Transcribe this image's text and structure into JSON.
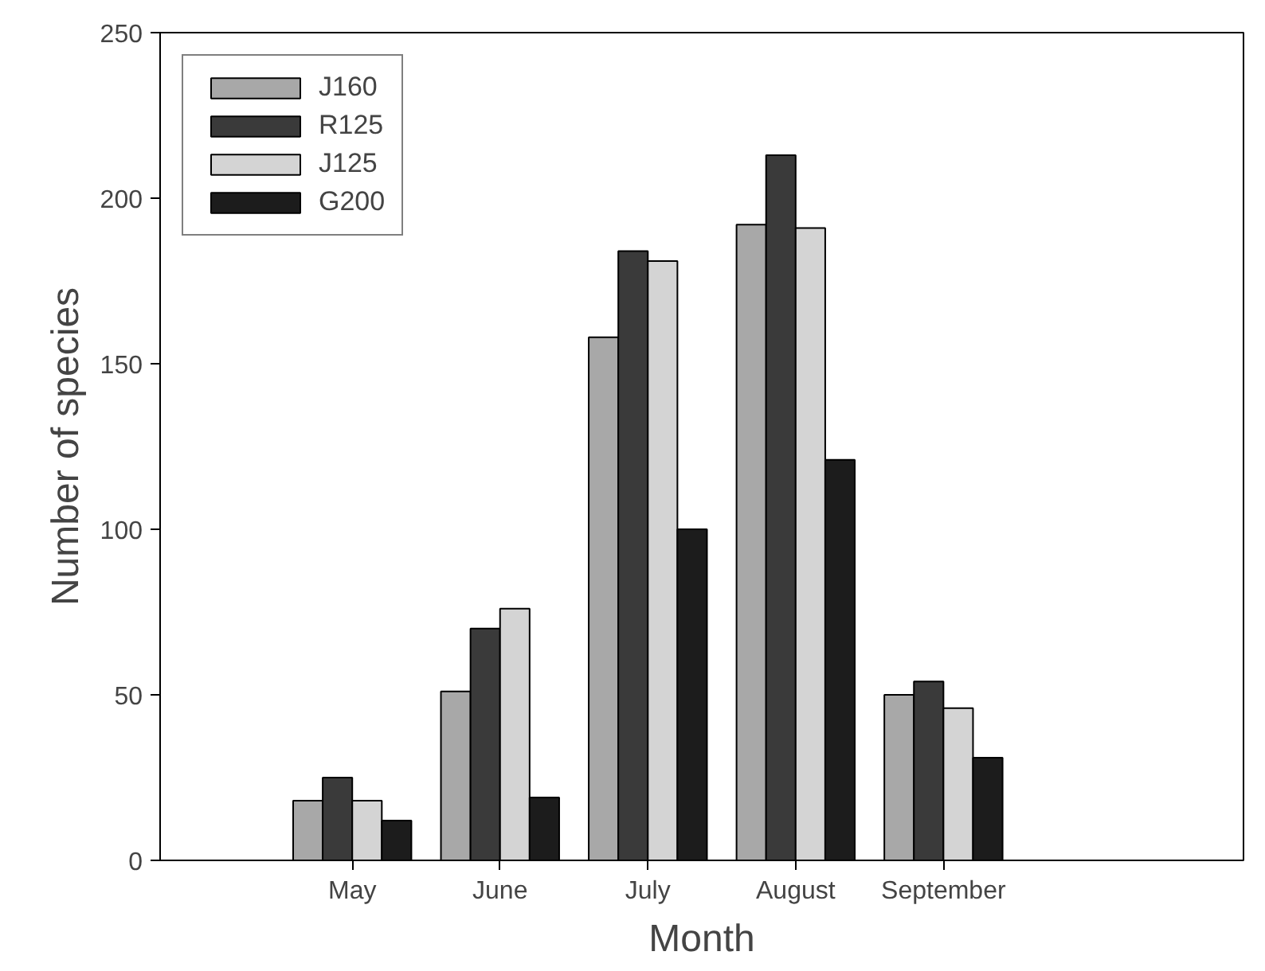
{
  "chart_data": {
    "type": "bar",
    "xlabel": "Month",
    "ylabel": "Number of species",
    "categories": [
      "May",
      "June",
      "July",
      "August",
      "September"
    ],
    "series": [
      {
        "name": "J160",
        "color": "#a8a8a8",
        "values": [
          18,
          51,
          158,
          192,
          50
        ]
      },
      {
        "name": "R125",
        "color": "#3a3a3a",
        "values": [
          25,
          70,
          184,
          213,
          54
        ]
      },
      {
        "name": "J125",
        "color": "#d4d4d4",
        "values": [
          18,
          76,
          181,
          191,
          46
        ]
      },
      {
        "name": "G200",
        "color": "#1c1c1c",
        "values": [
          12,
          19,
          100,
          121,
          31
        ]
      }
    ],
    "ylim": [
      0,
      250
    ],
    "yticks": [
      0,
      50,
      100,
      150,
      200,
      250
    ],
    "grid": false,
    "legend": "top left"
  }
}
